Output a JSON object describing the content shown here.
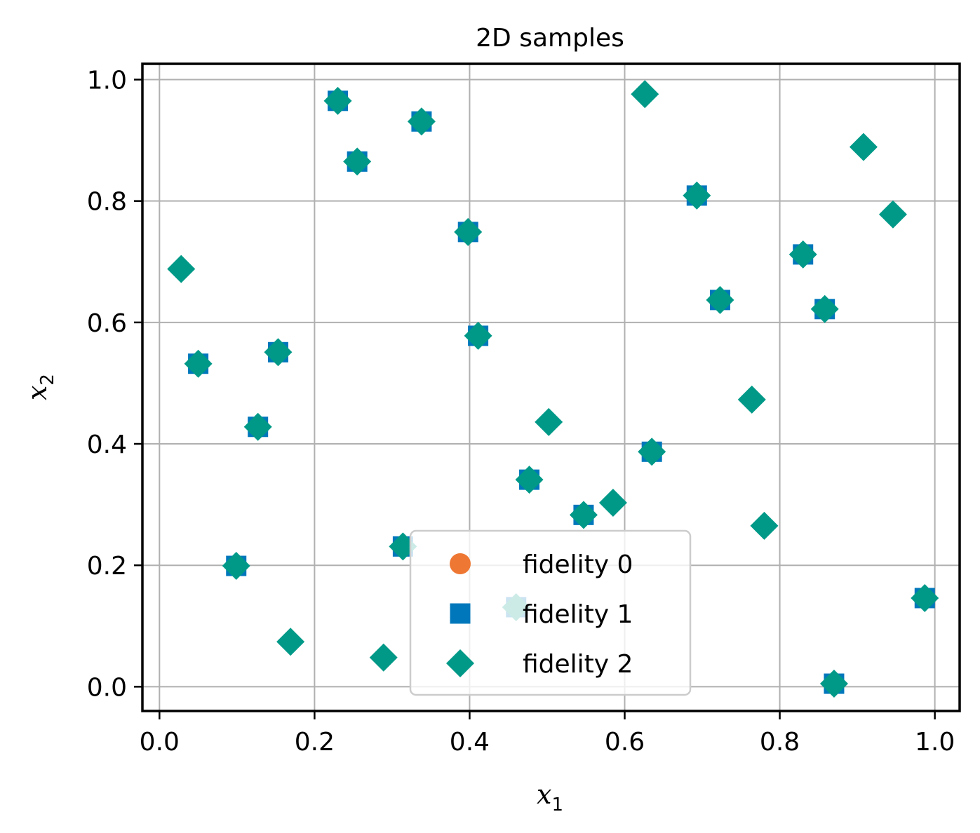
{
  "chart_data": {
    "type": "scatter",
    "title": "2D samples",
    "xlabel": {
      "base": "x",
      "sub": "1"
    },
    "ylabel": {
      "base": "x",
      "sub": "2"
    },
    "xlim": [
      -0.022,
      1.032
    ],
    "ylim": [
      -0.04,
      1.026
    ],
    "xticks": [
      0.0,
      0.2,
      0.4,
      0.6,
      0.8,
      1.0
    ],
    "yticks": [
      0.0,
      0.2,
      0.4,
      0.6,
      0.8,
      1.0
    ],
    "xtick_labels": [
      "0.0",
      "0.2",
      "0.4",
      "0.6",
      "0.8",
      "1.0"
    ],
    "ytick_labels": [
      "0.0",
      "0.2",
      "0.4",
      "0.6",
      "0.8",
      "1.0"
    ],
    "grid": true,
    "legend_position": "lower-center",
    "series": [
      {
        "name": "fidelity 0",
        "marker": "circle",
        "color": "#ee7733",
        "points": [
          [
            0.23,
            0.965
          ],
          [
            0.338,
            0.931
          ],
          [
            0.255,
            0.865
          ],
          [
            0.693,
            0.809
          ],
          [
            0.398,
            0.749
          ],
          [
            0.83,
            0.712
          ],
          [
            0.723,
            0.637
          ],
          [
            0.858,
            0.622
          ],
          [
            0.411,
            0.578
          ],
          [
            0.05,
            0.532
          ],
          [
            0.153,
            0.551
          ],
          [
            0.127,
            0.428
          ],
          [
            0.635,
            0.387
          ],
          [
            0.477,
            0.341
          ],
          [
            0.547,
            0.283
          ],
          [
            0.314,
            0.231
          ],
          [
            0.099,
            0.199
          ],
          [
            0.46,
            0.131
          ],
          [
            0.987,
            0.146
          ],
          [
            0.87,
            0.005
          ]
        ]
      },
      {
        "name": "fidelity 1",
        "marker": "square",
        "color": "#0077bb",
        "points": [
          [
            0.23,
            0.965
          ],
          [
            0.338,
            0.931
          ],
          [
            0.255,
            0.865
          ],
          [
            0.693,
            0.809
          ],
          [
            0.398,
            0.749
          ],
          [
            0.83,
            0.712
          ],
          [
            0.723,
            0.637
          ],
          [
            0.858,
            0.622
          ],
          [
            0.411,
            0.578
          ],
          [
            0.05,
            0.532
          ],
          [
            0.153,
            0.551
          ],
          [
            0.127,
            0.428
          ],
          [
            0.635,
            0.387
          ],
          [
            0.477,
            0.341
          ],
          [
            0.547,
            0.283
          ],
          [
            0.314,
            0.231
          ],
          [
            0.099,
            0.199
          ],
          [
            0.46,
            0.131
          ],
          [
            0.987,
            0.146
          ],
          [
            0.87,
            0.005
          ]
        ]
      },
      {
        "name": "fidelity 2",
        "marker": "diamond",
        "color": "#009988",
        "points": [
          [
            0.23,
            0.965
          ],
          [
            0.338,
            0.931
          ],
          [
            0.255,
            0.865
          ],
          [
            0.693,
            0.809
          ],
          [
            0.398,
            0.749
          ],
          [
            0.83,
            0.712
          ],
          [
            0.723,
            0.637
          ],
          [
            0.858,
            0.622
          ],
          [
            0.411,
            0.578
          ],
          [
            0.05,
            0.532
          ],
          [
            0.153,
            0.551
          ],
          [
            0.127,
            0.428
          ],
          [
            0.635,
            0.387
          ],
          [
            0.477,
            0.341
          ],
          [
            0.547,
            0.283
          ],
          [
            0.314,
            0.231
          ],
          [
            0.099,
            0.199
          ],
          [
            0.46,
            0.131
          ],
          [
            0.987,
            0.146
          ],
          [
            0.87,
            0.005
          ],
          [
            0.626,
            0.976
          ],
          [
            0.908,
            0.889
          ],
          [
            0.946,
            0.778
          ],
          [
            0.028,
            0.688
          ],
          [
            0.764,
            0.473
          ],
          [
            0.502,
            0.436
          ],
          [
            0.585,
            0.303
          ],
          [
            0.78,
            0.265
          ],
          [
            0.169,
            0.074
          ],
          [
            0.289,
            0.048
          ]
        ]
      }
    ]
  }
}
